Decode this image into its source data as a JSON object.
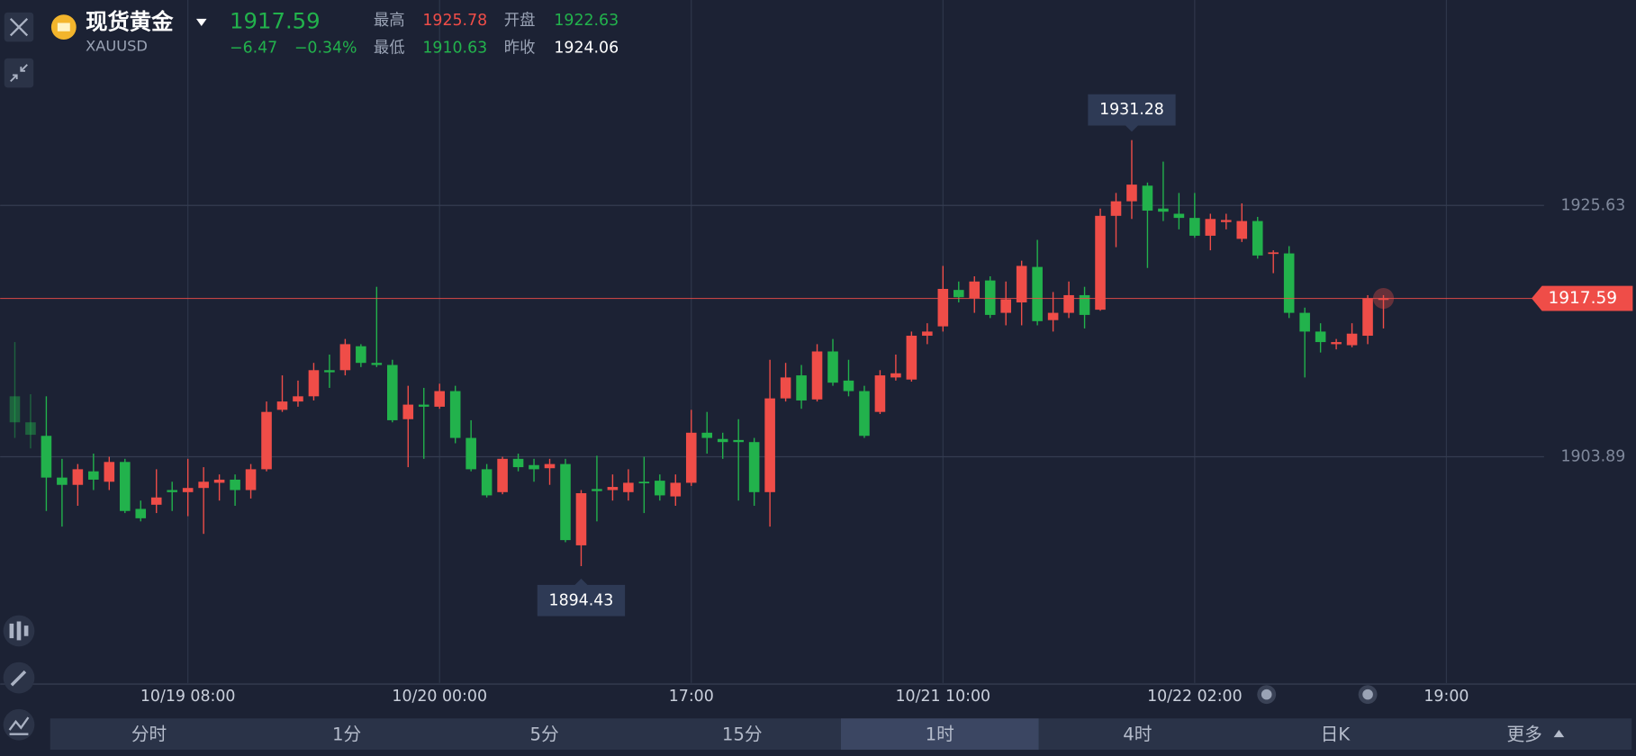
{
  "header": {
    "name": "现货黄金",
    "symbol": "XAUUSD",
    "price": "1917.59",
    "change": "−6.47",
    "change_pct": "−0.34%",
    "stats": [
      {
        "label": "最高",
        "value": "1925.78"
      },
      {
        "label": "开盘",
        "value": "1922.63"
      },
      {
        "label": "最低",
        "value": "1910.63"
      },
      {
        "label": "昨收",
        "value": "1924.06"
      }
    ]
  },
  "chart_data": {
    "type": "candlestick",
    "up_color": "#ef4d48",
    "down_color": "#22b24c",
    "grid": true,
    "xlim": [
      -0.935,
      97.21
    ],
    "ylim": [
      1884.32,
      1943.4
    ],
    "xticks": [
      {
        "value": 11,
        "label": "10/19 08:00"
      },
      {
        "value": 27,
        "label": "10/20 00:00"
      },
      {
        "value": 43,
        "label": "17:00"
      },
      {
        "value": 59,
        "label": "10/21 10:00"
      },
      {
        "value": 75,
        "label": "10/22 02:00"
      },
      {
        "value": 91,
        "label": "19:00"
      }
    ],
    "yticks": [
      1925.63,
      1903.89
    ],
    "open": [
      1909.12,
      1906.87,
      1905.7,
      1902.09,
      1901.46,
      1902.63,
      1901.73,
      1903.44,
      1899.38,
      1899.74,
      1901.01,
      1900.83,
      1901.19,
      1901.64,
      1901.91,
      1901.01,
      1902.81,
      1907.95,
      1908.67,
      1909.12,
      1911.38,
      1911.38,
      1913.45,
      1912.01,
      1911.83,
      1907.14,
      1908.4,
      1908.22,
      1909.57,
      1905.52,
      1902.81,
      1900.83,
      1903.71,
      1903.17,
      1902.9,
      1903.26,
      1896.23,
      1901.1,
      1901.01,
      1900.83,
      1901.73,
      1901.82,
      1900.46,
      1901.64,
      1905.97,
      1905.43,
      1905.34,
      1905.16,
      1900.83,
      1908.94,
      1910.93,
      1908.85,
      1913.0,
      1910.48,
      1909.57,
      1907.77,
      1910.75,
      1910.57,
      1914.36,
      1915.17,
      1918.32,
      1917.6,
      1919.14,
      1916.34,
      1917.24,
      1920.31,
      1915.71,
      1916.34,
      1917.87,
      1916.61,
      1924.73,
      1925.99,
      1927.34,
      1925.36,
      1924.91,
      1924.55,
      1923.01,
      1924.19,
      1922.74,
      1924.28,
      1921.48,
      1921.48,
      1916.34,
      1914.72,
      1913.63,
      1913.54,
      1914.36,
      1917.5
    ],
    "high": [
      1913.81,
      1909.3,
      1909.12,
      1903.71,
      1903.26,
      1904.16,
      1903.89,
      1903.71,
      1900.1,
      1902.81,
      1901.73,
      1903.71,
      1902.99,
      1902.36,
      1902.36,
      1903.26,
      1908.67,
      1910.93,
      1910.48,
      1912.01,
      1912.73,
      1914.08,
      1913.63,
      1918.59,
      1912.28,
      1910.03,
      1909.85,
      1910.21,
      1910.03,
      1907.05,
      1903.26,
      1903.89,
      1904.16,
      1903.71,
      1903.71,
      1903.71,
      1901.01,
      1903.98,
      1902.36,
      1902.81,
      1903.89,
      1902.36,
      1902.36,
      1907.95,
      1907.77,
      1905.97,
      1907.14,
      1905.52,
      1912.28,
      1912.01,
      1911.83,
      1913.63,
      1914.08,
      1912.28,
      1910.03,
      1911.38,
      1912.73,
      1914.72,
      1915.44,
      1920.4,
      1919.05,
      1919.5,
      1919.5,
      1919.05,
      1920.85,
      1922.65,
      1918.14,
      1919.05,
      1918.59,
      1925.36,
      1926.71,
      1931.28,
      1927.61,
      1929.42,
      1926.71,
      1926.71,
      1924.91,
      1924.91,
      1925.81,
      1924.64,
      1921.75,
      1922.11,
      1916.79,
      1915.44,
      1914.08,
      1915.44,
      1917.87,
      1917.87
    ],
    "low": [
      1905.52,
      1904.61,
      1899.2,
      1897.85,
      1899.65,
      1901.01,
      1901.01,
      1899.02,
      1898.3,
      1899.02,
      1899.2,
      1898.75,
      1897.22,
      1900.1,
      1899.65,
      1900.28,
      1902.63,
      1907.77,
      1908.22,
      1908.76,
      1909.85,
      1910.93,
      1911.65,
      1911.65,
      1906.87,
      1902.99,
      1903.71,
      1908.04,
      1905.06,
      1902.63,
      1900.37,
      1900.65,
      1902.63,
      1901.73,
      1901.46,
      1896.5,
      1894.43,
      1898.3,
      1900.1,
      1900.1,
      1899.02,
      1900.1,
      1899.65,
      1901.37,
      1904.16,
      1903.71,
      1900.1,
      1899.65,
      1897.85,
      1908.67,
      1908.04,
      1908.67,
      1910.03,
      1909.12,
      1905.52,
      1907.59,
      1910.48,
      1910.39,
      1913.63,
      1914.72,
      1917.24,
      1916.34,
      1915.89,
      1915.26,
      1915.26,
      1915.26,
      1914.72,
      1915.89,
      1914.99,
      1916.52,
      1922.02,
      1924.46,
      1920.22,
      1924.28,
      1923.56,
      1922.83,
      1921.75,
      1923.56,
      1922.47,
      1921.03,
      1919.77,
      1915.89,
      1910.75,
      1912.91,
      1913.18,
      1913.36,
      1913.63,
      1914.99
    ],
    "close": [
      1906.87,
      1905.79,
      1902.09,
      1901.46,
      1902.81,
      1901.91,
      1903.44,
      1899.2,
      1898.57,
      1900.37,
      1900.83,
      1901.19,
      1901.73,
      1901.91,
      1901.01,
      1902.81,
      1907.77,
      1908.67,
      1909.12,
      1911.38,
      1911.2,
      1913.63,
      1912.01,
      1911.83,
      1907.05,
      1908.4,
      1908.22,
      1909.57,
      1905.52,
      1902.81,
      1900.55,
      1903.71,
      1902.99,
      1902.81,
      1903.26,
      1896.68,
      1900.74,
      1900.92,
      1901.28,
      1901.64,
      1901.64,
      1900.55,
      1901.64,
      1905.97,
      1905.52,
      1905.16,
      1905.16,
      1900.83,
      1908.94,
      1910.75,
      1908.76,
      1913.0,
      1910.3,
      1909.57,
      1905.7,
      1910.93,
      1911.11,
      1914.36,
      1914.72,
      1918.41,
      1917.69,
      1919.05,
      1916.16,
      1917.51,
      1920.4,
      1915.62,
      1916.34,
      1917.87,
      1916.16,
      1924.73,
      1925.99,
      1927.43,
      1925.18,
      1925.09,
      1924.55,
      1923.01,
      1924.46,
      1924.37,
      1924.28,
      1921.3,
      1921.57,
      1916.34,
      1914.72,
      1913.81,
      1913.81,
      1914.54,
      1917.59,
      1917.59
    ],
    "last_price": 1917.59,
    "last_price_color": "#ef4d48",
    "annotations": [
      {
        "x": 71,
        "value": 1931.28,
        "position": "above"
      },
      {
        "x": 36,
        "value": 1894.43,
        "position": "below"
      }
    ]
  },
  "timeframes": {
    "items": [
      "分时",
      "1分",
      "5分",
      "15分",
      "1时",
      "4时",
      "日K",
      "更多"
    ],
    "selected": 4
  }
}
